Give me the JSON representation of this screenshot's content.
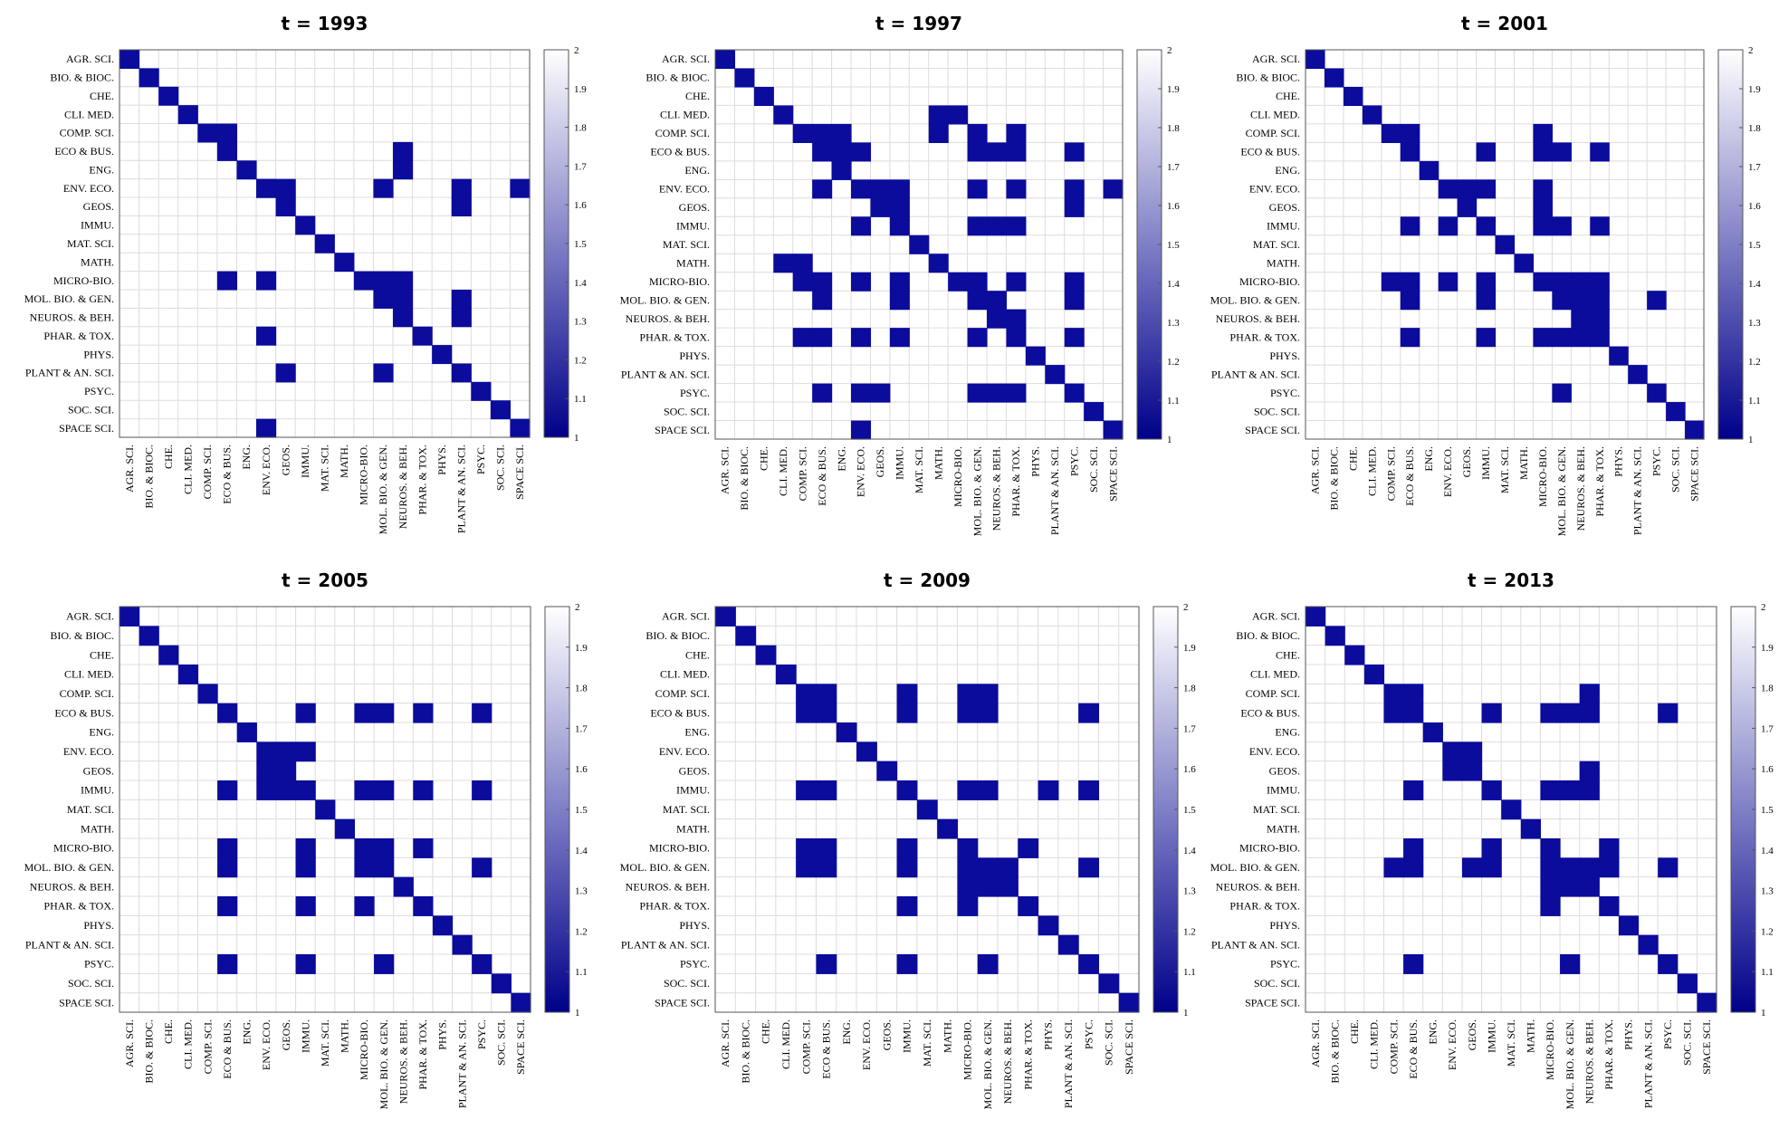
{
  "figure": {
    "categories": [
      "AGR. SCI.",
      "BIO. & BIOC.",
      "CHE.",
      "CLI. MED.",
      "COMP. SCI.",
      "ECO & BUS.",
      "ENG.",
      "ENV. ECO.",
      "GEOS.",
      "IMMU.",
      "MAT. SCI.",
      "MATH.",
      "MICRO-BIO.",
      "MOL. BIO. & GEN.",
      "NEUROS. & BEH.",
      "PHAR. & TOX.",
      "PHYS.",
      "PLANT & AN. SCI.",
      "PSYC.",
      "SOC. SCI.",
      "SPACE SCI."
    ],
    "colorbar_ticks": [
      "1",
      "1.1",
      "1.2",
      "1.3",
      "1.4",
      "1.5",
      "1.6",
      "1.7",
      "1.8",
      "1.9",
      "2"
    ],
    "colors": {
      "filled": "#0b0b9c",
      "grid": "#dcdcdc",
      "frame": "#000000"
    }
  },
  "chart_data": [
    {
      "type": "heatmap",
      "title": "t = 1993",
      "clim": [
        1,
        2
      ],
      "cells": [
        [
          4,
          5
        ],
        [
          5,
          14
        ],
        [
          6,
          14
        ],
        [
          7,
          7
        ],
        [
          7,
          8
        ],
        [
          7,
          13
        ],
        [
          7,
          17
        ],
        [
          7,
          20
        ],
        [
          8,
          17
        ],
        [
          12,
          5
        ],
        [
          12,
          7
        ],
        [
          12,
          13
        ],
        [
          12,
          14
        ],
        [
          13,
          14
        ],
        [
          13,
          17
        ],
        [
          14,
          17
        ],
        [
          15,
          7
        ],
        [
          17,
          8
        ],
        [
          17,
          13
        ],
        [
          20,
          7
        ]
      ]
    },
    {
      "type": "heatmap",
      "title": "t = 1997",
      "clim": [
        1,
        2
      ],
      "cells": [
        [
          3,
          11
        ],
        [
          3,
          12
        ],
        [
          4,
          5
        ],
        [
          4,
          6
        ],
        [
          4,
          11
        ],
        [
          4,
          13
        ],
        [
          4,
          15
        ],
        [
          5,
          6
        ],
        [
          5,
          7
        ],
        [
          5,
          13
        ],
        [
          5,
          14
        ],
        [
          5,
          15
        ],
        [
          5,
          18
        ],
        [
          7,
          5
        ],
        [
          7,
          8
        ],
        [
          7,
          9
        ],
        [
          7,
          13
        ],
        [
          7,
          15
        ],
        [
          7,
          18
        ],
        [
          7,
          20
        ],
        [
          8,
          9
        ],
        [
          8,
          18
        ],
        [
          9,
          7
        ],
        [
          9,
          13
        ],
        [
          9,
          14
        ],
        [
          9,
          15
        ],
        [
          11,
          3
        ],
        [
          11,
          4
        ],
        [
          12,
          4
        ],
        [
          12,
          5
        ],
        [
          12,
          7
        ],
        [
          12,
          9
        ],
        [
          12,
          13
        ],
        [
          12,
          15
        ],
        [
          12,
          18
        ],
        [
          13,
          5
        ],
        [
          13,
          9
        ],
        [
          13,
          14
        ],
        [
          13,
          18
        ],
        [
          14,
          15
        ],
        [
          15,
          4
        ],
        [
          15,
          5
        ],
        [
          15,
          7
        ],
        [
          15,
          9
        ],
        [
          15,
          13
        ],
        [
          15,
          18
        ],
        [
          18,
          5
        ],
        [
          18,
          7
        ],
        [
          18,
          8
        ],
        [
          18,
          13
        ],
        [
          18,
          14
        ],
        [
          18,
          15
        ],
        [
          20,
          7
        ]
      ]
    },
    {
      "type": "heatmap",
      "title": "t = 2001",
      "clim": [
        1,
        2
      ],
      "cells": [
        [
          4,
          5
        ],
        [
          4,
          12
        ],
        [
          5,
          9
        ],
        [
          5,
          12
        ],
        [
          5,
          13
        ],
        [
          5,
          15
        ],
        [
          7,
          8
        ],
        [
          7,
          9
        ],
        [
          7,
          12
        ],
        [
          8,
          12
        ],
        [
          9,
          5
        ],
        [
          9,
          7
        ],
        [
          9,
          12
        ],
        [
          9,
          13
        ],
        [
          9,
          15
        ],
        [
          12,
          4
        ],
        [
          12,
          5
        ],
        [
          12,
          7
        ],
        [
          12,
          9
        ],
        [
          12,
          13
        ],
        [
          12,
          14
        ],
        [
          12,
          15
        ],
        [
          13,
          5
        ],
        [
          13,
          9
        ],
        [
          13,
          14
        ],
        [
          13,
          15
        ],
        [
          13,
          18
        ],
        [
          14,
          15
        ],
        [
          15,
          5
        ],
        [
          15,
          9
        ],
        [
          15,
          12
        ],
        [
          15,
          13
        ],
        [
          15,
          14
        ],
        [
          18,
          13
        ]
      ]
    },
    {
      "type": "heatmap",
      "title": "t = 2005",
      "clim": [
        1,
        2
      ],
      "cells": [
        [
          5,
          9
        ],
        [
          5,
          12
        ],
        [
          5,
          13
        ],
        [
          5,
          15
        ],
        [
          5,
          18
        ],
        [
          7,
          8
        ],
        [
          7,
          9
        ],
        [
          8,
          7
        ],
        [
          9,
          5
        ],
        [
          9,
          7
        ],
        [
          9,
          8
        ],
        [
          9,
          12
        ],
        [
          9,
          13
        ],
        [
          9,
          15
        ],
        [
          9,
          18
        ],
        [
          12,
          5
        ],
        [
          12,
          9
        ],
        [
          12,
          13
        ],
        [
          12,
          15
        ],
        [
          13,
          5
        ],
        [
          13,
          9
        ],
        [
          13,
          12
        ],
        [
          13,
          18
        ],
        [
          15,
          5
        ],
        [
          15,
          9
        ],
        [
          15,
          12
        ],
        [
          18,
          5
        ],
        [
          18,
          9
        ],
        [
          18,
          13
        ]
      ]
    },
    {
      "type": "heatmap",
      "title": "t = 2009",
      "clim": [
        1,
        2
      ],
      "cells": [
        [
          4,
          5
        ],
        [
          4,
          9
        ],
        [
          4,
          12
        ],
        [
          4,
          13
        ],
        [
          5,
          4
        ],
        [
          5,
          9
        ],
        [
          5,
          12
        ],
        [
          5,
          13
        ],
        [
          5,
          18
        ],
        [
          9,
          4
        ],
        [
          9,
          5
        ],
        [
          9,
          12
        ],
        [
          9,
          13
        ],
        [
          9,
          16
        ],
        [
          9,
          18
        ],
        [
          12,
          4
        ],
        [
          12,
          5
        ],
        [
          12,
          9
        ],
        [
          12,
          15
        ],
        [
          13,
          4
        ],
        [
          13,
          5
        ],
        [
          13,
          9
        ],
        [
          13,
          12
        ],
        [
          13,
          14
        ],
        [
          13,
          18
        ],
        [
          14,
          12
        ],
        [
          14,
          13
        ],
        [
          15,
          9
        ],
        [
          15,
          12
        ],
        [
          18,
          5
        ],
        [
          18,
          9
        ],
        [
          18,
          13
        ]
      ]
    },
    {
      "type": "heatmap",
      "title": "t = 2013",
      "clim": [
        1,
        2
      ],
      "cells": [
        [
          4,
          5
        ],
        [
          4,
          14
        ],
        [
          5,
          4
        ],
        [
          5,
          9
        ],
        [
          5,
          12
        ],
        [
          5,
          13
        ],
        [
          5,
          14
        ],
        [
          5,
          18
        ],
        [
          7,
          8
        ],
        [
          8,
          7
        ],
        [
          8,
          14
        ],
        [
          9,
          5
        ],
        [
          9,
          12
        ],
        [
          9,
          13
        ],
        [
          9,
          14
        ],
        [
          12,
          5
        ],
        [
          12,
          9
        ],
        [
          12,
          15
        ],
        [
          13,
          4
        ],
        [
          13,
          5
        ],
        [
          13,
          8
        ],
        [
          13,
          9
        ],
        [
          13,
          12
        ],
        [
          13,
          14
        ],
        [
          13,
          15
        ],
        [
          13,
          18
        ],
        [
          14,
          12
        ],
        [
          14,
          13
        ],
        [
          15,
          12
        ],
        [
          18,
          5
        ],
        [
          18,
          13
        ]
      ]
    }
  ]
}
